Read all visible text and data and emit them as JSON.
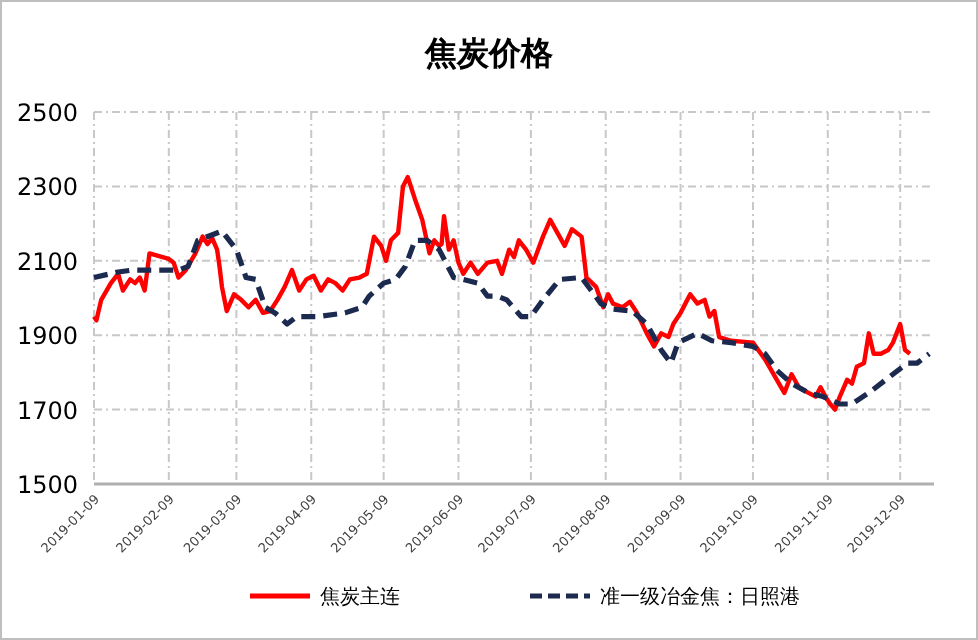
{
  "chart_data": {
    "type": "line",
    "title": "焦炭价格",
    "xlim": [
      "2019-01-09",
      "2019-12-23"
    ],
    "xticks": [
      "2019-01-09",
      "2019-02-09",
      "2019-03-09",
      "2019-04-09",
      "2019-05-09",
      "2019-06-09",
      "2019-07-09",
      "2019-08-09",
      "2019-09-09",
      "2019-10-09",
      "2019-11-09",
      "2019-12-09"
    ],
    "ylim": [
      1500,
      2500
    ],
    "yticks": [
      1500,
      1700,
      1900,
      2100,
      2300,
      2500
    ],
    "grid": true,
    "legend": "bottom",
    "series": [
      {
        "name": "焦炭主连",
        "color": "#ff0000",
        "line_style": "solid",
        "x": [
          "2019-01-09",
          "2019-01-10",
          "2019-01-12",
          "2019-01-16",
          "2019-01-19",
          "2019-01-21",
          "2019-01-24",
          "2019-01-26",
          "2019-01-28",
          "2019-01-30",
          "2019-02-01",
          "2019-02-09",
          "2019-02-11",
          "2019-02-13",
          "2019-02-16",
          "2019-02-20",
          "2019-02-23",
          "2019-02-25",
          "2019-02-27",
          "2019-03-01",
          "2019-03-02",
          "2019-03-03",
          "2019-03-05",
          "2019-03-08",
          "2019-03-11",
          "2019-03-14",
          "2019-03-17",
          "2019-03-20",
          "2019-03-23",
          "2019-03-26",
          "2019-03-29",
          "2019-04-01",
          "2019-04-04",
          "2019-04-07",
          "2019-04-10",
          "2019-04-13",
          "2019-04-16",
          "2019-04-19",
          "2019-04-22",
          "2019-04-25",
          "2019-04-29",
          "2019-05-02",
          "2019-05-05",
          "2019-05-08",
          "2019-05-10",
          "2019-05-12",
          "2019-05-15",
          "2019-05-17",
          "2019-05-19",
          "2019-05-22",
          "2019-05-25",
          "2019-05-28",
          "2019-05-30",
          "2019-06-01",
          "2019-06-02",
          "2019-06-03",
          "2019-06-05",
          "2019-06-07",
          "2019-06-09",
          "2019-06-11",
          "2019-06-14",
          "2019-06-17",
          "2019-06-21",
          "2019-06-25",
          "2019-06-27",
          "2019-06-30",
          "2019-07-02",
          "2019-07-04",
          "2019-07-07",
          "2019-07-10",
          "2019-07-14",
          "2019-07-17",
          "2019-07-20",
          "2019-07-23",
          "2019-07-26",
          "2019-07-30",
          "2019-08-01",
          "2019-08-05",
          "2019-08-08",
          "2019-08-10",
          "2019-08-12",
          "2019-08-16",
          "2019-08-19",
          "2019-08-22",
          "2019-08-26",
          "2019-08-29",
          "2019-09-01",
          "2019-09-04",
          "2019-09-06",
          "2019-09-09",
          "2019-09-13",
          "2019-09-16",
          "2019-09-19",
          "2019-09-21",
          "2019-09-23",
          "2019-09-25",
          "2019-09-30",
          "2019-10-09",
          "2019-10-14",
          "2019-10-18",
          "2019-10-22",
          "2019-10-25",
          "2019-10-28",
          "2019-11-01",
          "2019-11-04",
          "2019-11-06",
          "2019-11-08",
          "2019-11-10",
          "2019-11-12",
          "2019-11-14",
          "2019-11-17",
          "2019-11-19",
          "2019-11-21",
          "2019-11-24",
          "2019-11-26",
          "2019-11-28",
          "2019-12-01",
          "2019-12-04",
          "2019-12-06",
          "2019-12-09",
          "2019-12-11",
          "2019-12-13"
        ],
        "values": [
          1950,
          1940,
          1995,
          2040,
          2065,
          2020,
          2050,
          2040,
          2055,
          2020,
          2120,
          2105,
          2095,
          2055,
          2075,
          2120,
          2165,
          2145,
          2160,
          2130,
          2085,
          2030,
          1965,
          2010,
          1995,
          1975,
          1995,
          1960,
          1965,
          1995,
          2030,
          2075,
          2020,
          2050,
          2060,
          2020,
          2050,
          2040,
          2020,
          2050,
          2055,
          2065,
          2165,
          2140,
          2100,
          2155,
          2175,
          2300,
          2325,
          2265,
          2210,
          2120,
          2155,
          2140,
          2145,
          2220,
          2130,
          2155,
          2095,
          2065,
          2095,
          2065,
          2095,
          2100,
          2065,
          2130,
          2110,
          2155,
          2130,
          2095,
          2165,
          2210,
          2175,
          2140,
          2185,
          2165,
          2055,
          2030,
          1975,
          2010,
          1985,
          1975,
          1990,
          1960,
          1905,
          1870,
          1905,
          1895,
          1930,
          1960,
          2010,
          1985,
          1995,
          1950,
          1965,
          1895,
          1885,
          1880,
          1835,
          1790,
          1745,
          1795,
          1760,
          1745,
          1735,
          1760,
          1735,
          1715,
          1700,
          1735,
          1780,
          1770,
          1815,
          1825,
          1905,
          1850,
          1850,
          1860,
          1880,
          1930,
          1860,
          1850
        ]
      },
      {
        "name": "准一级冶金焦：日照港",
        "color": "#1b2a4e",
        "line_style": "dashed",
        "x": [
          "2019-01-09",
          "2019-01-19",
          "2019-01-25",
          "2019-02-05",
          "2019-02-13",
          "2019-02-17",
          "2019-02-21",
          "2019-03-03",
          "2019-03-09",
          "2019-03-13",
          "2019-03-17",
          "2019-03-21",
          "2019-03-25",
          "2019-03-30",
          "2019-04-03",
          "2019-04-12",
          "2019-04-23",
          "2019-04-30",
          "2019-05-03",
          "2019-05-09",
          "2019-05-14",
          "2019-05-18",
          "2019-05-22",
          "2019-05-27",
          "2019-06-01",
          "2019-06-07",
          "2019-06-11",
          "2019-06-17",
          "2019-06-21",
          "2019-06-25",
          "2019-06-29",
          "2019-07-05",
          "2019-07-09",
          "2019-07-14",
          "2019-07-21",
          "2019-07-30",
          "2019-08-03",
          "2019-08-07",
          "2019-08-12",
          "2019-08-20",
          "2019-08-26",
          "2019-09-01",
          "2019-09-05",
          "2019-09-08",
          "2019-09-16",
          "2019-09-22",
          "2019-09-30",
          "2019-10-09",
          "2019-10-14",
          "2019-10-19",
          "2019-10-25",
          "2019-11-01",
          "2019-11-07",
          "2019-11-14",
          "2019-11-19",
          "2019-11-27",
          "2019-12-05",
          "2019-12-12",
          "2019-12-16",
          "2019-12-21"
        ],
        "values": [
          2055,
          2070,
          2075,
          2075,
          2075,
          2085,
          2155,
          2180,
          2130,
          2055,
          2050,
          1975,
          1960,
          1930,
          1950,
          1950,
          1960,
          1975,
          2005,
          2040,
          2050,
          2085,
          2155,
          2155,
          2130,
          2055,
          2050,
          2040,
          2005,
          2005,
          1995,
          1950,
          1950,
          1995,
          2050,
          2055,
          2020,
          1985,
          1970,
          1965,
          1930,
          1860,
          1825,
          1880,
          1905,
          1885,
          1880,
          1870,
          1850,
          1805,
          1770,
          1745,
          1735,
          1715,
          1715,
          1750,
          1790,
          1825,
          1825,
          1850
        ]
      }
    ]
  }
}
